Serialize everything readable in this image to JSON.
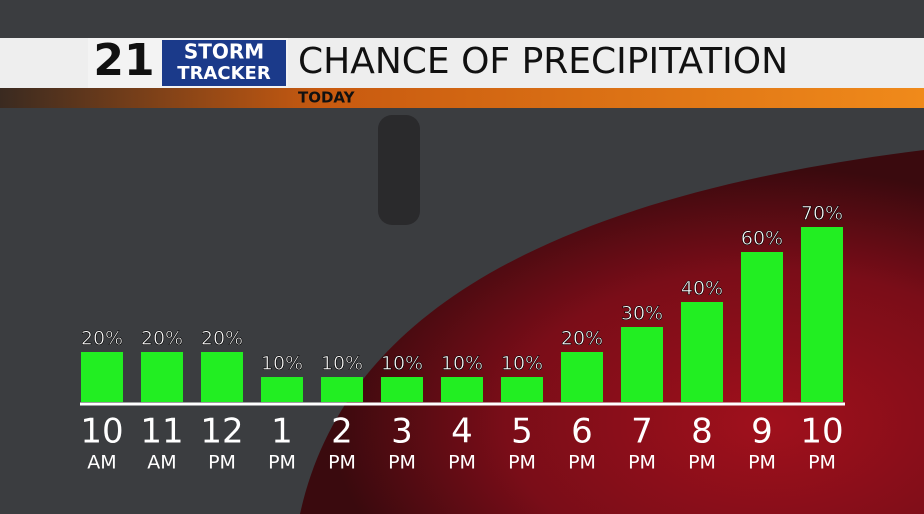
{
  "logo": {
    "number": "21",
    "line1": "STORM",
    "line2": "TRACKER"
  },
  "chart_data": {
    "type": "bar",
    "title": "CHANCE OF PRECIPITATION",
    "subtitle": "TODAY",
    "categories": [
      {
        "hour": "10",
        "period": "AM"
      },
      {
        "hour": "11",
        "period": "AM"
      },
      {
        "hour": "12",
        "period": "PM"
      },
      {
        "hour": "1",
        "period": "PM"
      },
      {
        "hour": "2",
        "period": "PM"
      },
      {
        "hour": "3",
        "period": "PM"
      },
      {
        "hour": "4",
        "period": "PM"
      },
      {
        "hour": "5",
        "period": "PM"
      },
      {
        "hour": "6",
        "period": "PM"
      },
      {
        "hour": "7",
        "period": "PM"
      },
      {
        "hour": "8",
        "period": "PM"
      },
      {
        "hour": "9",
        "period": "PM"
      },
      {
        "hour": "10",
        "period": "PM"
      }
    ],
    "values": [
      20,
      20,
      20,
      10,
      10,
      10,
      10,
      10,
      20,
      30,
      40,
      60,
      70
    ],
    "value_labels": [
      "20%",
      "20%",
      "20%",
      "10%",
      "10%",
      "10%",
      "10%",
      "10%",
      "20%",
      "30%",
      "40%",
      "60%",
      "70%"
    ],
    "color": "#22ee22"
  }
}
